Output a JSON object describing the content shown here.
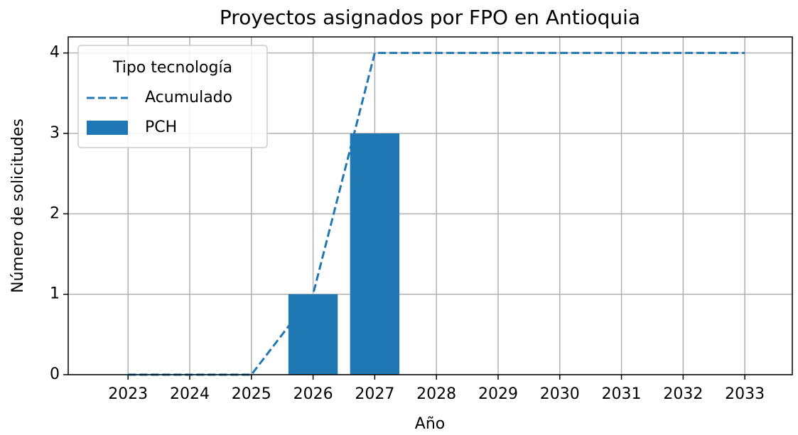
{
  "chart_data": {
    "type": "bar",
    "title": "Proyectos asignados por FPO en Antioquia",
    "x_label": "Año",
    "y_label": "Número de solicitudes",
    "x": [
      2023,
      2024,
      2025,
      2026,
      2027,
      2028,
      2029,
      2030,
      2031,
      2032,
      2033
    ],
    "series": [
      {
        "name": "Acumulado",
        "type": "line",
        "linestyle": "dashed",
        "color": "#1f77b4",
        "values": [
          0,
          0,
          0,
          1,
          4,
          4,
          4,
          4,
          4,
          4,
          4
        ]
      },
      {
        "name": "PCH",
        "type": "bar",
        "color": "#1f77b4",
        "values": [
          null,
          null,
          null,
          1,
          3,
          null,
          null,
          null,
          null,
          null,
          null
        ]
      }
    ],
    "xlim": [
      2022.03,
      2033.77
    ],
    "ylim": [
      0,
      4.2
    ],
    "xticks": [
      2023,
      2024,
      2025,
      2026,
      2027,
      2028,
      2029,
      2030,
      2031,
      2032,
      2033
    ],
    "yticks": [
      0,
      1,
      2,
      3,
      4
    ],
    "grid": true,
    "legend_title": "Tipo tecnología",
    "legend_loc": "upper left"
  }
}
